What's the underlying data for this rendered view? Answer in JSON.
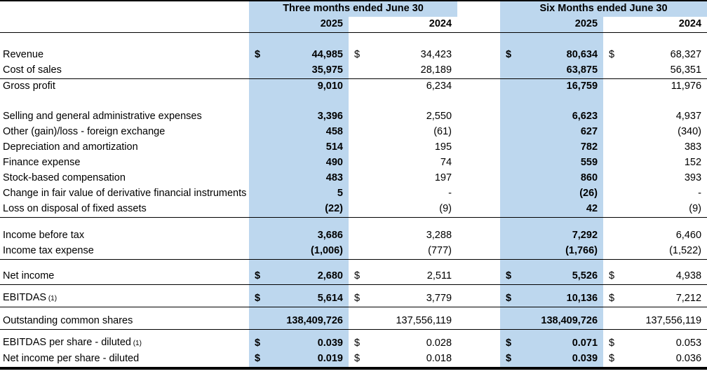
{
  "table": {
    "currency_symbol": "$",
    "highlight_color": "#BDD7EE",
    "column_groups": [
      {
        "label": "Three months ended June 30",
        "years": [
          "2025",
          "2024"
        ]
      },
      {
        "label": "Six Months ended June 30",
        "years": [
          "2025",
          "2024"
        ]
      }
    ],
    "rows": [
      {
        "type": "spacer",
        "size": "lg"
      },
      {
        "type": "data",
        "label": "Revenue",
        "dollar": true,
        "values": [
          "44,985",
          "34,423",
          "80,634",
          "68,327"
        ]
      },
      {
        "type": "data",
        "label": "Cost of sales",
        "values": [
          "35,975",
          "28,189",
          "63,875",
          "56,351"
        ],
        "line_below": true
      },
      {
        "type": "data",
        "label": "Gross profit",
        "values": [
          "9,010",
          "6,234",
          "16,759",
          "11,976"
        ]
      },
      {
        "type": "spacer",
        "size": "lg"
      },
      {
        "type": "data",
        "label": "Selling and general administrative expenses",
        "values": [
          "3,396",
          "2,550",
          "6,623",
          "4,937"
        ]
      },
      {
        "type": "data",
        "label": "Other (gain)/loss - foreign exchange",
        "values": [
          "458",
          "(61)",
          "627",
          "(340)"
        ]
      },
      {
        "type": "data",
        "label": "Depreciation and amortization",
        "values": [
          "514",
          "195",
          "782",
          "383"
        ]
      },
      {
        "type": "data",
        "label": "Finance expense",
        "values": [
          "490",
          "74",
          "559",
          "152"
        ]
      },
      {
        "type": "data",
        "label": "Stock-based compensation",
        "values": [
          "483",
          "197",
          "860",
          "393"
        ]
      },
      {
        "type": "data",
        "label": "Change in fair value of derivative financial instruments",
        "justify": true,
        "values": [
          "5",
          "-",
          "(26)",
          "-"
        ]
      },
      {
        "type": "data",
        "label": "Loss on disposal of fixed assets",
        "values": [
          "(22)",
          "(9)",
          "42",
          "(9)"
        ],
        "line_below": true
      },
      {
        "type": "spacer",
        "size": "md"
      },
      {
        "type": "data",
        "label": "Income before tax",
        "values": [
          "3,686",
          "3,288",
          "7,292",
          "6,460"
        ]
      },
      {
        "type": "data",
        "label": "Income tax expense",
        "values": [
          "(1,006)",
          "(777)",
          "(1,766)",
          "(1,522)"
        ],
        "line_below": true
      },
      {
        "type": "spacer",
        "size": "sm"
      },
      {
        "type": "data",
        "label": "Net income",
        "dollar": true,
        "values": [
          "2,680",
          "2,511",
          "5,526",
          "4,938"
        ],
        "line_below": true
      },
      {
        "type": "spacer",
        "size": "xs"
      },
      {
        "type": "data",
        "label": "EBITDAS",
        "footnote": "(1)",
        "dollar": true,
        "values": [
          "5,614",
          "3,779",
          "10,136",
          "7,212"
        ],
        "line_below": true
      },
      {
        "type": "spacer",
        "size": "xs"
      },
      {
        "type": "data",
        "label": "Outstanding common shares",
        "values": [
          "138,409,726",
          "137,556,119",
          "138,409,726",
          "137,556,119"
        ],
        "line_below": true
      },
      {
        "type": "spacer",
        "size": "xs"
      },
      {
        "type": "data",
        "label": "EBITDAS per share - diluted",
        "footnote": "(1)",
        "dollar": true,
        "values": [
          "0.039",
          "0.028",
          "0.071",
          "0.053"
        ]
      },
      {
        "type": "data",
        "label": "Net income per share - diluted",
        "dollar": true,
        "values": [
          "0.019",
          "0.018",
          "0.039",
          "0.036"
        ]
      }
    ]
  }
}
